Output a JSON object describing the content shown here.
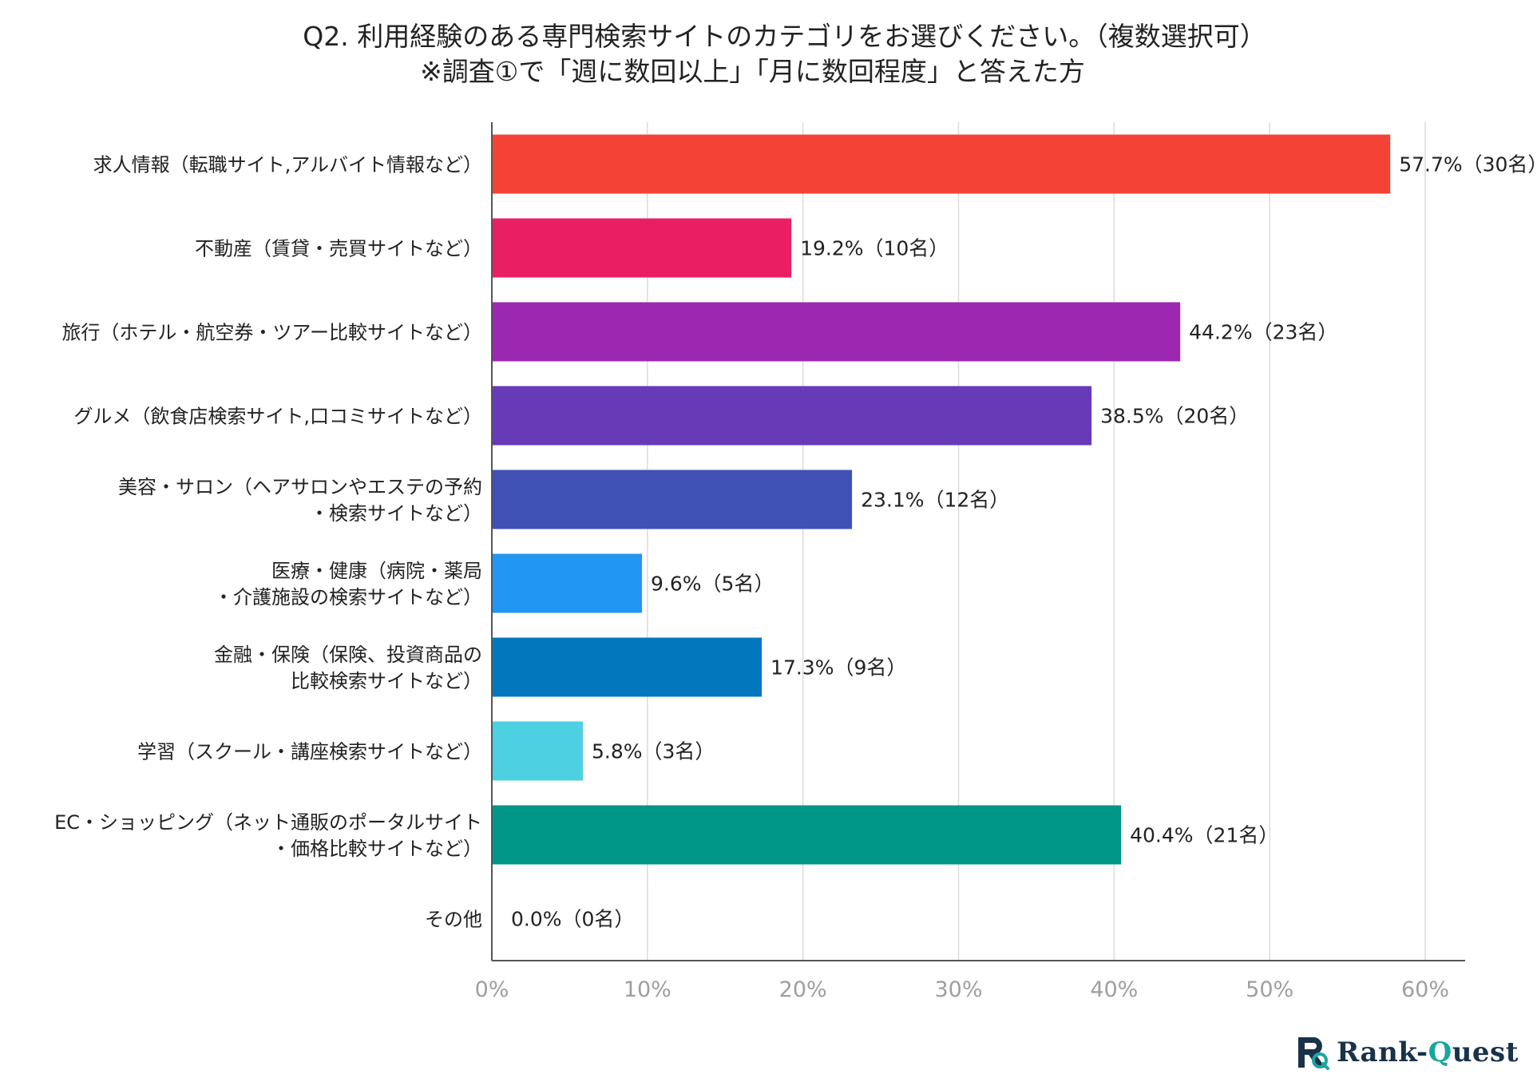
{
  "chart_data": {
    "type": "bar",
    "orientation": "horizontal",
    "title": [
      "Q2. 利用経験のある専門検索サイトのカテゴリをお選びください。（複数選択可）",
      "※調査①で「週に数回以上」「月に数回程度」と答えた方"
    ],
    "categories": [
      [
        "求人情報（転職サイト,アルバイト情報など）"
      ],
      [
        "不動産（賃貸・売買サイトなど）"
      ],
      [
        "旅行（ホテル・航空券・ツアー比較サイトなど）"
      ],
      [
        "グルメ（飲食店検索サイト,口コミサイトなど）"
      ],
      [
        "美容・サロン（ヘアサロンやエステの予約",
        "・検索サイトなど）"
      ],
      [
        "医療・健康（病院・薬局",
        "・介護施設の検索サイトなど）"
      ],
      [
        "金融・保険（保険、投資商品の",
        "比較検索サイトなど）"
      ],
      [
        "学習（スクール・講座検索サイトなど）"
      ],
      [
        "EC・ショッピング（ネット通販のポータルサイト",
        "・価格比較サイトなど）"
      ],
      [
        "その他"
      ]
    ],
    "values": [
      57.7,
      19.2,
      44.2,
      38.5,
      23.1,
      9.6,
      17.3,
      5.8,
      40.4,
      0.0
    ],
    "counts": [
      30,
      10,
      23,
      20,
      12,
      5,
      9,
      3,
      21,
      0
    ],
    "data_labels": [
      "57.7%（30名）",
      "19.2%（10名）",
      "44.2%（23名）",
      "38.5%（20名）",
      "23.1%（12名）",
      "9.6%（5名）",
      "17.3%（9名）",
      "5.8%（3名）",
      "40.4%（21名）",
      "0.0%（0名）"
    ],
    "colors": [
      "#f44336",
      "#e91e63",
      "#9c27b0",
      "#673ab7",
      "#3f51b5",
      "#2196f3",
      "#0277bd",
      "#4dd0e1",
      "#009688",
      "#bdbdbd"
    ],
    "xlim": [
      0,
      60
    ],
    "xticks": [
      0,
      10,
      20,
      30,
      40,
      50,
      60
    ],
    "xtick_labels": [
      "0%",
      "10%",
      "20%",
      "30%",
      "40%",
      "50%",
      "60%"
    ],
    "xlabel": "",
    "ylabel": "",
    "grid": true,
    "legend": "none"
  },
  "logo": {
    "text_part1": "Rank-",
    "text_part2": "Q",
    "text_part3": "uest",
    "brand_color": "#18324a",
    "accent_color": "#1aa6a0"
  }
}
